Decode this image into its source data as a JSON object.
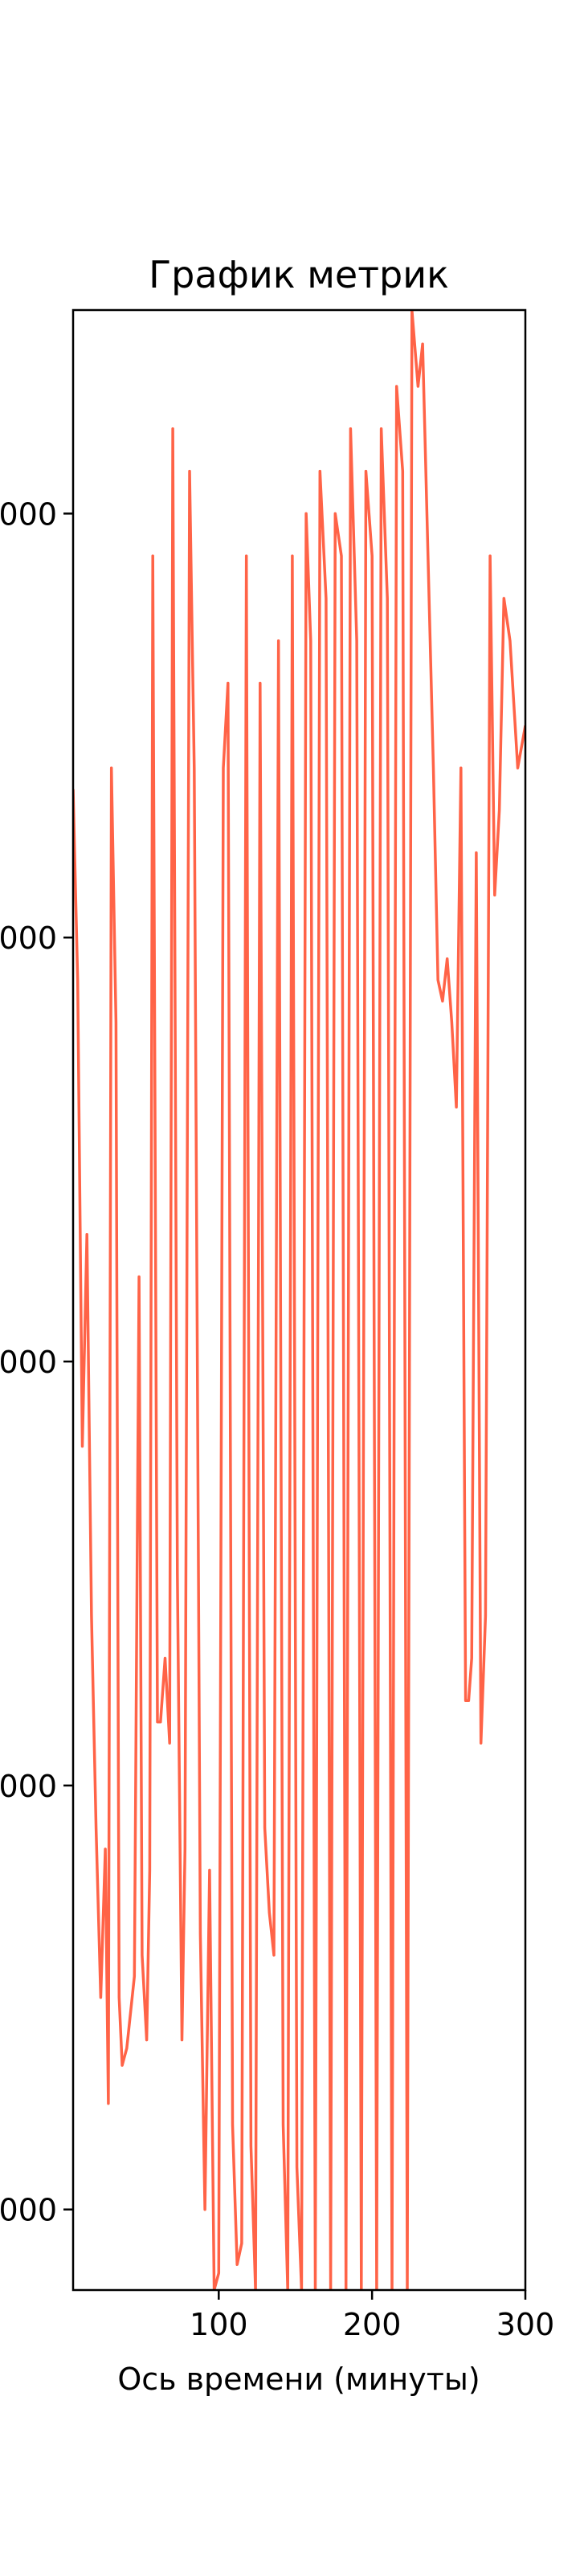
{
  "chart_data": {
    "type": "line",
    "title": "График метрик",
    "xlabel": "Ось времени (минуты)",
    "ylabel": "",
    "grid": false,
    "legend": "none",
    "line_color": "#ff6347",
    "xlim": [
      5,
      300
    ],
    "ylim": [
      -2090,
      2580
    ],
    "x_ticks": [
      100,
      200,
      300
    ],
    "x_tick_labels": [
      "100",
      "200",
      "300"
    ],
    "y_ticks": [
      -1900,
      -900,
      100,
      1100,
      2100
    ],
    "y_tick_labels": [
      "000",
      "000",
      "000",
      "000",
      "000"
    ],
    "series": [
      {
        "values": [
          [
            5,
            1450
          ],
          [
            8,
            1000
          ],
          [
            11,
            -100
          ],
          [
            14,
            400
          ],
          [
            17,
            -500
          ],
          [
            20,
            -1000
          ],
          [
            23,
            -1400
          ],
          [
            26,
            -1050
          ],
          [
            28,
            -1650
          ],
          [
            30,
            1500
          ],
          [
            33,
            900
          ],
          [
            35,
            -1400
          ],
          [
            37,
            -1560
          ],
          [
            40,
            -1520
          ],
          [
            45,
            -1350
          ],
          [
            48,
            300
          ],
          [
            50,
            -1300
          ],
          [
            53,
            -1500
          ],
          [
            55,
            -1100
          ],
          [
            57,
            2000
          ],
          [
            60,
            -750
          ],
          [
            62,
            -750
          ],
          [
            65,
            -600
          ],
          [
            68,
            -800
          ],
          [
            70,
            2300
          ],
          [
            73,
            -400
          ],
          [
            76,
            -1500
          ],
          [
            78,
            -1050
          ],
          [
            81,
            2200
          ],
          [
            84,
            1500
          ],
          [
            88,
            -1250
          ],
          [
            91,
            -1900
          ],
          [
            94,
            -1100
          ],
          [
            97,
            -2090
          ],
          [
            100,
            -2050
          ],
          [
            103,
            1500
          ],
          [
            106,
            1700
          ],
          [
            109,
            -1700
          ],
          [
            112,
            -2030
          ],
          [
            115,
            -1980
          ],
          [
            118,
            2000
          ],
          [
            121,
            -1750
          ],
          [
            124,
            -2090
          ],
          [
            127,
            1700
          ],
          [
            130,
            -1000
          ],
          [
            133,
            -1200
          ],
          [
            136,
            -1300
          ],
          [
            139,
            1800
          ],
          [
            142,
            -1700
          ],
          [
            145,
            -2090
          ],
          [
            148,
            2000
          ],
          [
            151,
            -1800
          ],
          [
            154,
            -2090
          ],
          [
            157,
            2100
          ],
          [
            160,
            1800
          ],
          [
            163,
            -2090
          ],
          [
            166,
            2200
          ],
          [
            170,
            1900
          ],
          [
            173,
            -2090
          ],
          [
            176,
            2100
          ],
          [
            180,
            2000
          ],
          [
            183,
            -2090
          ],
          [
            186,
            2300
          ],
          [
            190,
            1800
          ],
          [
            193,
            -2090
          ],
          [
            196,
            2200
          ],
          [
            200,
            2000
          ],
          [
            203,
            -2090
          ],
          [
            206,
            2300
          ],
          [
            210,
            1900
          ],
          [
            213,
            -2090
          ],
          [
            216,
            2400
          ],
          [
            220,
            2200
          ],
          [
            223,
            -2090
          ],
          [
            226,
            2580
          ],
          [
            230,
            2400
          ],
          [
            233,
            2500
          ],
          [
            240,
            1500
          ],
          [
            243,
            1000
          ],
          [
            246,
            950
          ],
          [
            249,
            1050
          ],
          [
            252,
            900
          ],
          [
            255,
            700
          ],
          [
            258,
            1500
          ],
          [
            261,
            -700
          ],
          [
            263,
            -700
          ],
          [
            265,
            -600
          ],
          [
            268,
            1300
          ],
          [
            271,
            -800
          ],
          [
            274,
            -500
          ],
          [
            277,
            2000
          ],
          [
            280,
            1200
          ],
          [
            283,
            1400
          ],
          [
            286,
            1900
          ],
          [
            290,
            1800
          ],
          [
            295,
            1500
          ],
          [
            300,
            1600
          ]
        ]
      }
    ]
  }
}
